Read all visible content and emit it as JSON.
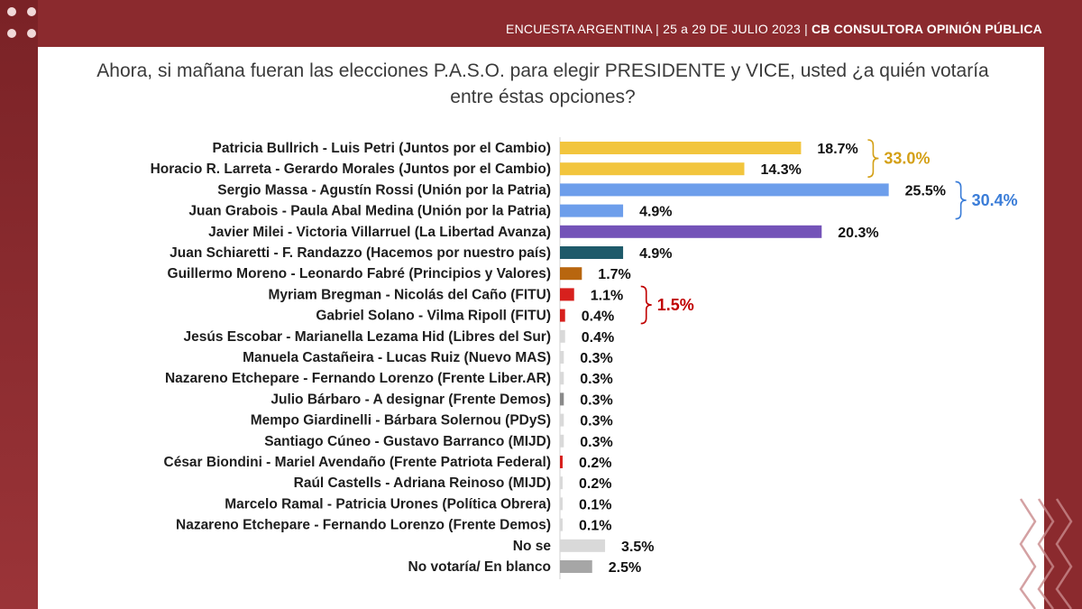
{
  "header": {
    "survey": "ENCUESTA ARGENTINA",
    "dates": "25 a 29 DE JULIO 2023",
    "firm": "CB CONSULTORA OPINIÓN PÚBLICA"
  },
  "chart_data": {
    "type": "bar",
    "orientation": "horizontal",
    "title": "Ahora, si mañana fueran las elecciones P.A.S.O. para elegir PRESIDENTE y VICE, usted ¿a quién votaría entre éstas opciones?",
    "value_suffix": "%",
    "xlim": [
      0,
      26
    ],
    "grid": false,
    "categories": [
      "Patricia Bullrich - Luis Petri (Juntos por el Cambio)",
      "Horacio R. Larreta - Gerardo Morales (Juntos por el Cambio)",
      "Sergio Massa  - Agustín Rossi  (Unión por la Patria)",
      "Juan Grabois  - Paula Abal Medina  (Unión por la Patria)",
      "Javier Milei  - Victoria Villarruel  (La Libertad Avanza)",
      "Juan Schiaretti  - F. Randazzo  (Hacemos por nuestro país)",
      "Guillermo Moreno  - Leonardo Fabré  (Principios y Valores)",
      "Myriam Bregman  - Nicolás del Caño  (FITU)",
      "Gabriel Solano  - Vilma Ripoll  (FITU)",
      "Jesús Escobar  - Marianella Lezama Hid  (Libres del Sur)",
      "Manuela Castañeira  - Lucas Ruiz  (Nuevo MAS)",
      "Nazareno Etchepare  - Fernando Lorenzo  (Frente Liber.AR)",
      "Julio Bárbaro  - A designar  (Frente Demos)",
      "Mempo Giardinelli  - Bárbara Solernou  (PDyS)",
      "Santiago Cúneo  - Gustavo Barranco  (MIJD)",
      "César Biondini  - Mariel Avendaño  (Frente Patriota Federal)",
      "Raúl Castells  - Adriana Reinoso  (MIJD)",
      "Marcelo Ramal  - Patricia Urones  (Política Obrera)",
      "Nazareno Etchepare  - Fernando Lorenzo  (Frente Demos)",
      "No se",
      "No votaría/ En blanco"
    ],
    "values": [
      18.7,
      14.3,
      25.5,
      4.9,
      20.3,
      4.9,
      1.7,
      1.1,
      0.4,
      0.4,
      0.3,
      0.3,
      0.3,
      0.3,
      0.3,
      0.2,
      0.2,
      0.1,
      0.1,
      3.5,
      2.5
    ],
    "value_labels": [
      "18.7%",
      "14.3%",
      "25.5%",
      "4.9%",
      "20.3%",
      "4.9%",
      "1.7%",
      "1.1%",
      "0.4%",
      "0.4%",
      "0.3%",
      "0.3%",
      "0.3%",
      "0.3%",
      "0.3%",
      "0.2%",
      "0.2%",
      "0.1%",
      "0.1%",
      "3.5%",
      "2.5%"
    ],
    "colors": [
      "#f2c53d",
      "#f2c53d",
      "#6d9eeb",
      "#6d9eeb",
      "#7453b8",
      "#1e5a6a",
      "#b8660f",
      "#d7201d",
      "#d7201d",
      "#d9d9d9",
      "#d9d9d9",
      "#d9d9d9",
      "#8a8a8a",
      "#d9d9d9",
      "#d9d9d9",
      "#d7201d",
      "#d9d9d9",
      "#d9d9d9",
      "#d9d9d9",
      "#d9d9d9",
      "#a6a6a6"
    ],
    "groups": [
      {
        "label": "33.0%",
        "from": 0,
        "to": 1,
        "color": "#d4a017"
      },
      {
        "label": "30.4%",
        "from": 2,
        "to": 3,
        "color": "#3b7dd8"
      },
      {
        "label": "1.5%",
        "from": 7,
        "to": 8,
        "color": "#c00000"
      }
    ]
  }
}
